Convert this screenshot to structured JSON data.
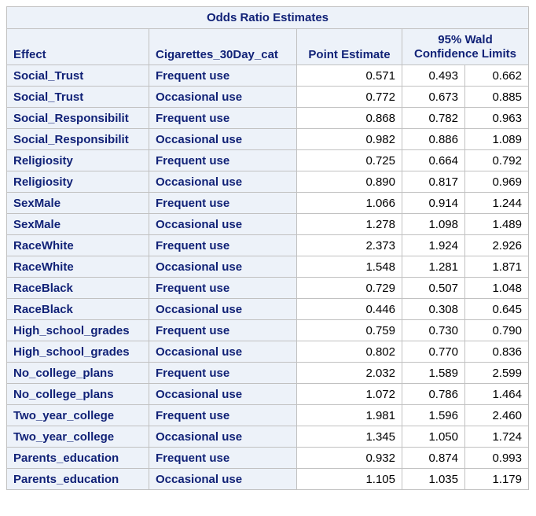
{
  "title": "Odds Ratio Estimates",
  "headers": {
    "effect": "Effect",
    "category": "Cigarettes_30Day_cat",
    "point_estimate": "Point Estimate",
    "wald_line1": "95% Wald",
    "wald_line2": "Confidence Limits"
  },
  "rows": [
    {
      "effect": "Social_Trust",
      "category": "Frequent use",
      "pe": "0.571",
      "lo": "0.493",
      "hi": "0.662"
    },
    {
      "effect": "Social_Trust",
      "category": "Occasional use",
      "pe": "0.772",
      "lo": "0.673",
      "hi": "0.885"
    },
    {
      "effect": "Social_Responsibilit",
      "category": "Frequent use",
      "pe": "0.868",
      "lo": "0.782",
      "hi": "0.963"
    },
    {
      "effect": "Social_Responsibilit",
      "category": "Occasional use",
      "pe": "0.982",
      "lo": "0.886",
      "hi": "1.089"
    },
    {
      "effect": "Religiosity",
      "category": "Frequent use",
      "pe": "0.725",
      "lo": "0.664",
      "hi": "0.792"
    },
    {
      "effect": "Religiosity",
      "category": "Occasional use",
      "pe": "0.890",
      "lo": "0.817",
      "hi": "0.969"
    },
    {
      "effect": "SexMale",
      "category": "Frequent use",
      "pe": "1.066",
      "lo": "0.914",
      "hi": "1.244"
    },
    {
      "effect": "SexMale",
      "category": "Occasional use",
      "pe": "1.278",
      "lo": "1.098",
      "hi": "1.489"
    },
    {
      "effect": "RaceWhite",
      "category": "Frequent use",
      "pe": "2.373",
      "lo": "1.924",
      "hi": "2.926"
    },
    {
      "effect": "RaceWhite",
      "category": "Occasional use",
      "pe": "1.548",
      "lo": "1.281",
      "hi": "1.871"
    },
    {
      "effect": "RaceBlack",
      "category": "Frequent use",
      "pe": "0.729",
      "lo": "0.507",
      "hi": "1.048"
    },
    {
      "effect": "RaceBlack",
      "category": "Occasional use",
      "pe": "0.446",
      "lo": "0.308",
      "hi": "0.645"
    },
    {
      "effect": "High_school_grades",
      "category": "Frequent use",
      "pe": "0.759",
      "lo": "0.730",
      "hi": "0.790"
    },
    {
      "effect": "High_school_grades",
      "category": "Occasional use",
      "pe": "0.802",
      "lo": "0.770",
      "hi": "0.836"
    },
    {
      "effect": "No_college_plans",
      "category": "Frequent use",
      "pe": "2.032",
      "lo": "1.589",
      "hi": "2.599"
    },
    {
      "effect": "No_college_plans",
      "category": "Occasional use",
      "pe": "1.072",
      "lo": "0.786",
      "hi": "1.464"
    },
    {
      "effect": "Two_year_college",
      "category": "Frequent use",
      "pe": "1.981",
      "lo": "1.596",
      "hi": "2.460"
    },
    {
      "effect": "Two_year_college",
      "category": "Occasional use",
      "pe": "1.345",
      "lo": "1.050",
      "hi": "1.724"
    },
    {
      "effect": "Parents_education",
      "category": "Frequent use",
      "pe": "0.932",
      "lo": "0.874",
      "hi": "0.993"
    },
    {
      "effect": "Parents_education",
      "category": "Occasional use",
      "pe": "1.105",
      "lo": "1.035",
      "hi": "1.179"
    }
  ]
}
